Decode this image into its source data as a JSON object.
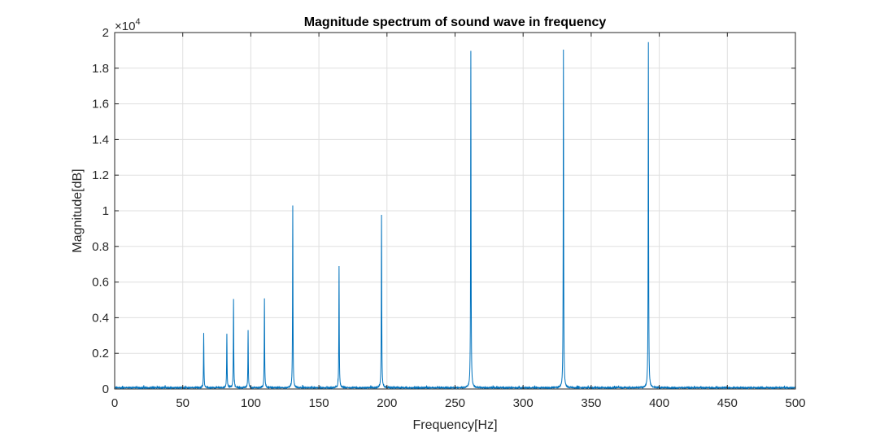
{
  "chart_data": {
    "type": "line",
    "title": "Magnitude spectrum of sound wave in frequency",
    "xlabel": "Frequency[Hz]",
    "ylabel": "Magnitude[dB]",
    "xlim": [
      0,
      500
    ],
    "ylim": [
      0,
      20000
    ],
    "x_ticks": [
      0,
      50,
      100,
      150,
      200,
      250,
      300,
      350,
      400,
      450,
      500
    ],
    "y_ticks": [
      0,
      0.2,
      0.4,
      0.6,
      0.8,
      1,
      1.2,
      1.4,
      1.6,
      1.8,
      2
    ],
    "y_exponent_label": "×10",
    "y_exponent_power": "4",
    "grid": true,
    "line_color": "#0072BD",
    "series": [
      {
        "peaks": [
          {
            "x": 65.4,
            "y": 3050
          },
          {
            "x": 82.4,
            "y": 3000
          },
          {
            "x": 87.3,
            "y": 4950
          },
          {
            "x": 98.0,
            "y": 3200
          },
          {
            "x": 110.0,
            "y": 5000
          },
          {
            "x": 130.8,
            "y": 10200
          },
          {
            "x": 164.8,
            "y": 6800
          },
          {
            "x": 196.0,
            "y": 9700
          },
          {
            "x": 261.6,
            "y": 18900
          },
          {
            "x": 329.6,
            "y": 19000
          },
          {
            "x": 392.0,
            "y": 19400
          }
        ]
      }
    ]
  }
}
